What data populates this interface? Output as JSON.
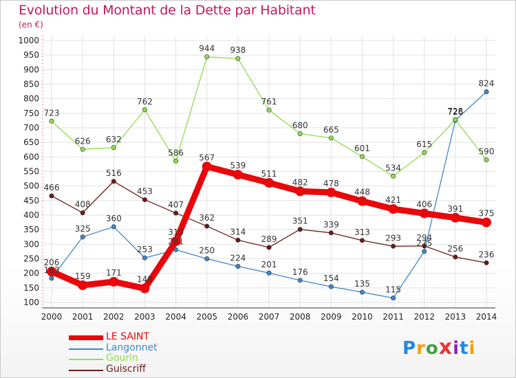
{
  "header": {
    "title": "Evolution du Montant de la Dette par Habitant",
    "unit": "(en €)"
  },
  "logo": {
    "text": "Proxiti"
  },
  "colors": {
    "title": "#c2185b",
    "grid": "#e2e2e2",
    "axis_ticks": "#c2185b"
  },
  "chart_data": {
    "type": "line",
    "title": "Evolution du Montant de la Dette par Habitant",
    "subtitle": "(en €)",
    "xlabel": "",
    "ylabel": "",
    "x": [
      2000,
      2001,
      2002,
      2003,
      2004,
      2005,
      2006,
      2007,
      2008,
      2009,
      2010,
      2011,
      2012,
      2013,
      2014
    ],
    "ylim": [
      100,
      1000
    ],
    "yticks": [
      100,
      150,
      200,
      250,
      300,
      350,
      400,
      450,
      500,
      550,
      600,
      650,
      700,
      750,
      800,
      850,
      900,
      950,
      1000
    ],
    "grid": true,
    "legend_position": "bottom-left",
    "series": [
      {
        "name": "LE SAINT",
        "color": "#e8070b",
        "emphasis": true,
        "values": [
          206,
          159,
          171,
          148,
          310,
          567,
          539,
          511,
          482,
          478,
          448,
          421,
          406,
          391,
          375
        ],
        "labels": [
          "206",
          "159",
          "171",
          "148",
          "310",
          "567",
          "539",
          "511",
          "482",
          "478",
          "448",
          "421",
          "406",
          "391",
          "375"
        ]
      },
      {
        "name": "Langonnet",
        "color": "#3e87c9",
        "emphasis": false,
        "values": [
          183,
          325,
          360,
          253,
          281,
          250,
          224,
          201,
          176,
          154,
          135,
          115,
          275,
          726,
          824
        ],
        "labels": [
          "183",
          "325",
          "360",
          "253",
          "281",
          "250",
          "224",
          "201",
          "176",
          "154",
          "135",
          "115",
          "275",
          "726",
          "824"
        ]
      },
      {
        "name": "Gourin",
        "color": "#8fdb52",
        "emphasis": false,
        "values": [
          723,
          626,
          632,
          762,
          586,
          944,
          938,
          761,
          680,
          665,
          601,
          534,
          615,
          728,
          590
        ],
        "labels": [
          "723",
          "626",
          "632",
          "762",
          "586",
          "944",
          "938",
          "761",
          "680",
          "665",
          "601",
          "534",
          "615",
          "728",
          "590"
        ]
      },
      {
        "name": "Guiscriff",
        "color": "#6b1a1a",
        "emphasis": false,
        "values": [
          466,
          408,
          516,
          453,
          407,
          362,
          314,
          289,
          351,
          339,
          313,
          293,
          294,
          256,
          236
        ],
        "labels": [
          "466",
          "408",
          "516",
          "453",
          "407",
          "362",
          "314",
          "289",
          "351",
          "339",
          "313",
          "293",
          "294",
          "256",
          "236"
        ]
      }
    ]
  }
}
